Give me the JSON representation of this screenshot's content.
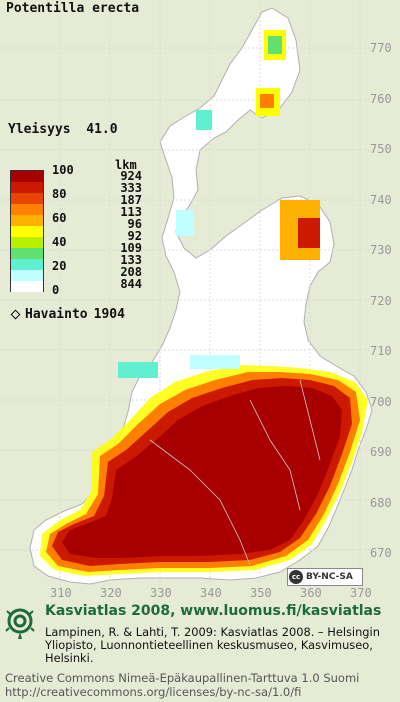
{
  "title": "Potentilla erecta",
  "frequency": {
    "label": "Yleisyys",
    "value": "41.0"
  },
  "legend": {
    "unit": "lkm",
    "ticks": [
      "100",
      "80",
      "60",
      "40",
      "20",
      "0"
    ],
    "swatches": [
      "#a80000",
      "#cc1a00",
      "#e84500",
      "#ff8000",
      "#ffb000",
      "#ffff00",
      "#b8f000",
      "#60e070",
      "#60f0d0",
      "#c0ffff",
      "#ffffff"
    ],
    "counts": [
      "924",
      "333",
      "187",
      "113",
      "96",
      "92",
      "109",
      "133",
      "208",
      "844"
    ]
  },
  "observations": {
    "label": "Havainto",
    "value": "1904"
  },
  "y_ticks": [
    "770",
    "760",
    "750",
    "740",
    "730",
    "720",
    "710",
    "700",
    "690",
    "680",
    "670"
  ],
  "x_ticks": [
    "310",
    "320",
    "330",
    "340",
    "350",
    "360",
    "370"
  ],
  "license_badge": {
    "cc": "cc",
    "text": "BY-NC-SA"
  },
  "footer": {
    "main": "Kasviatlas 2008, www.luomus.fi/kasviatlas",
    "citation": "Lampinen, R. & Lahti, T. 2009: Kasviatlas 2008. – Helsingin Yliopisto, Luonnontieteellinen keskusmuseo, Kasvimuseo, Helsinki.",
    "license_line1": "Creative Commons Nimeä-Epäkaupallinen-Tarttuva 1.0 Suomi",
    "license_line2": "http://creativecommons.org/licenses/by-nc-sa/1.0/fi"
  },
  "colors": {
    "background": "#e6ebd6",
    "land": "#ffffff",
    "high": "#a80000",
    "accent": "#1d6b3a"
  }
}
